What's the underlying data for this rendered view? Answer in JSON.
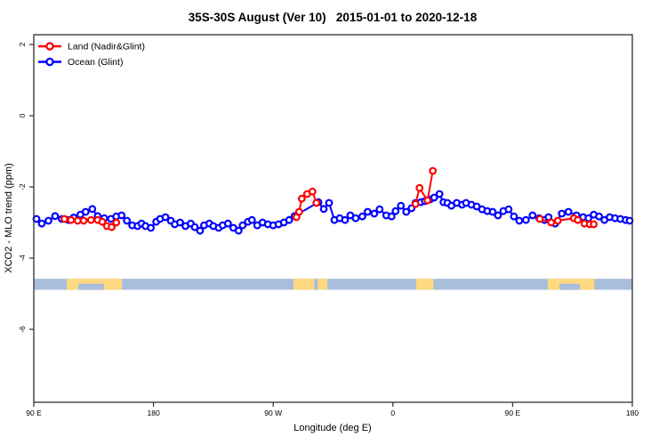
{
  "title": "35S-30S August (Ver 10)   2015-01-01 to 2020-12-18",
  "legend": {
    "items": [
      {
        "label": "Land (Nadir&Glint)",
        "color": "#ff0000"
      },
      {
        "label": "Ocean (Glint)",
        "color": "#0000ff"
      }
    ]
  },
  "colors": {
    "land_series": "#ff0000",
    "ocean_series": "#0000ff",
    "map_ocean": "#a9bedb",
    "map_land": "#fed980",
    "axis": "#2f2f2f",
    "marker_fill": "#ffffff"
  },
  "chart_data": {
    "type": "line",
    "title": "35S-30S August (Ver 10)   2015-01-01 to 2020-12-18",
    "xlabel": "Longitude (deg E)",
    "ylabel": "XCO2 - MLO trend (ppm)",
    "x_axis": {
      "note": "axis spans 450 deg starting at 90E, wrapping through 180, 90W, 0, 90E to 180",
      "range_deg": [
        0,
        450
      ],
      "ticks": [
        {
          "deg": 0,
          "label": "90 E"
        },
        {
          "deg": 90,
          "label": "180"
        },
        {
          "deg": 180,
          "label": "90 W"
        },
        {
          "deg": 270,
          "label": "0"
        },
        {
          "deg": 360,
          "label": "90 E"
        },
        {
          "deg": 450,
          "label": "180"
        }
      ]
    },
    "y_axis": {
      "range_ppm": [
        -8.05,
        2.28
      ],
      "ticks": [
        {
          "value": 2,
          "label": "2"
        },
        {
          "value": 0,
          "label": "0"
        },
        {
          "value": -2,
          "label": "-2"
        },
        {
          "value": -4,
          "label": "-4"
        },
        {
          "value": -6,
          "label": "-6"
        }
      ]
    },
    "series": [
      {
        "name": "Ocean (Glint)",
        "color": "#0000ff",
        "points": [
          [
            2,
            -2.9
          ],
          [
            6,
            -3.03
          ],
          [
            11,
            -2.95
          ],
          [
            16,
            -2.82
          ],
          [
            21,
            -2.9
          ],
          [
            26,
            -2.93
          ],
          [
            30,
            -2.86
          ],
          [
            35,
            -2.78
          ],
          [
            39,
            -2.7
          ],
          [
            44,
            -2.62
          ],
          [
            48,
            -2.82
          ],
          [
            53,
            -2.88
          ],
          [
            58,
            -2.9
          ],
          [
            62,
            -2.83
          ],
          [
            66,
            -2.8
          ],
          [
            70,
            -2.95
          ],
          [
            74,
            -3.08
          ],
          [
            78,
            -3.1
          ],
          [
            81,
            -3.03
          ],
          [
            84,
            -3.1
          ],
          [
            88,
            -3.15
          ],
          [
            92,
            -2.98
          ],
          [
            95,
            -2.9
          ],
          [
            99,
            -2.85
          ],
          [
            103,
            -2.95
          ],
          [
            106,
            -3.05
          ],
          [
            110,
            -3.0
          ],
          [
            114,
            -3.1
          ],
          [
            118,
            -3.03
          ],
          [
            121,
            -3.13
          ],
          [
            125,
            -3.23
          ],
          [
            128,
            -3.08
          ],
          [
            132,
            -3.03
          ],
          [
            135,
            -3.1
          ],
          [
            139,
            -3.15
          ],
          [
            142,
            -3.08
          ],
          [
            146,
            -3.03
          ],
          [
            150,
            -3.15
          ],
          [
            154,
            -3.23
          ],
          [
            157,
            -3.08
          ],
          [
            161,
            -2.98
          ],
          [
            164,
            -2.93
          ],
          [
            168,
            -3.08
          ],
          [
            172,
            -3.0
          ],
          [
            176,
            -3.05
          ],
          [
            180,
            -3.08
          ],
          [
            184,
            -3.05
          ],
          [
            188,
            -3.0
          ],
          [
            192,
            -2.93
          ],
          [
            196,
            -2.82
          ],
          [
            214,
            -2.43
          ],
          [
            218,
            -2.62
          ],
          [
            222,
            -2.45
          ],
          [
            226,
            -2.93
          ],
          [
            230,
            -2.88
          ],
          [
            234,
            -2.93
          ],
          [
            238,
            -2.8
          ],
          [
            242,
            -2.88
          ],
          [
            247,
            -2.83
          ],
          [
            251,
            -2.7
          ],
          [
            256,
            -2.75
          ],
          [
            260,
            -2.63
          ],
          [
            265,
            -2.8
          ],
          [
            269,
            -2.83
          ],
          [
            272,
            -2.68
          ],
          [
            276,
            -2.53
          ],
          [
            280,
            -2.7
          ],
          [
            284,
            -2.6
          ],
          [
            287,
            -2.45
          ],
          [
            291,
            -2.43
          ],
          [
            294,
            -2.4
          ],
          [
            298,
            -2.35
          ],
          [
            301,
            -2.3
          ],
          [
            305,
            -2.2
          ],
          [
            308,
            -2.43
          ],
          [
            311,
            -2.45
          ],
          [
            314,
            -2.53
          ],
          [
            318,
            -2.45
          ],
          [
            322,
            -2.5
          ],
          [
            325,
            -2.45
          ],
          [
            329,
            -2.5
          ],
          [
            333,
            -2.55
          ],
          [
            337,
            -2.63
          ],
          [
            341,
            -2.68
          ],
          [
            345,
            -2.7
          ],
          [
            349,
            -2.8
          ],
          [
            353,
            -2.68
          ],
          [
            357,
            -2.63
          ],
          [
            361,
            -2.83
          ],
          [
            365,
            -2.95
          ],
          [
            370,
            -2.93
          ],
          [
            375,
            -2.8
          ],
          [
            380,
            -2.88
          ],
          [
            384,
            -2.93
          ],
          [
            387,
            -2.85
          ],
          [
            392,
            -3.03
          ],
          [
            397,
            -2.75
          ],
          [
            402,
            -2.7
          ],
          [
            408,
            -2.8
          ],
          [
            413,
            -2.85
          ],
          [
            417,
            -2.88
          ],
          [
            421,
            -2.78
          ],
          [
            425,
            -2.83
          ],
          [
            429,
            -2.93
          ],
          [
            433,
            -2.85
          ],
          [
            437,
            -2.88
          ],
          [
            441,
            -2.9
          ],
          [
            445,
            -2.93
          ],
          [
            448,
            -2.95
          ]
        ]
      },
      {
        "name": "Land (Nadir&Glint)",
        "color": "#ff0000",
        "segments": [
          [
            [
              23,
              -2.9
            ],
            [
              28,
              -2.93
            ],
            [
              33,
              -2.95
            ],
            [
              37.5,
              -2.95
            ],
            [
              43,
              -2.93
            ],
            [
              48,
              -2.93
            ],
            [
              51.5,
              -2.98
            ],
            [
              55,
              -3.1
            ],
            [
              58.5,
              -3.13
            ],
            [
              62,
              -3.0
            ]
          ],
          [
            [
              197.5,
              -2.85
            ],
            [
              199.5,
              -2.7
            ],
            [
              201.5,
              -2.33
            ],
            [
              205.5,
              -2.2
            ],
            [
              209.5,
              -2.13
            ],
            [
              212.5,
              -2.45
            ]
          ],
          [
            [
              287,
              -2.48
            ],
            [
              290,
              -2.03
            ],
            [
              296,
              -2.38
            ],
            [
              300,
              -1.55
            ]
          ],
          [
            [
              380.5,
              -2.9
            ],
            [
              389,
              -3.0
            ],
            [
              394,
              -2.95
            ],
            [
              406,
              -2.88
            ],
            [
              409,
              -2.93
            ],
            [
              414,
              -3.03
            ],
            [
              418,
              -3.05
            ],
            [
              421,
              -3.05
            ]
          ]
        ]
      }
    ],
    "map_band": {
      "description": "land/ocean strip for 35S-30S latitude band vs longitude",
      "top_ppm": -4.58,
      "bottom_ppm": -4.89,
      "ocean_color": "#a9bedb",
      "land_color": "#fed980",
      "land_segments": [
        {
          "name": "australia-west-copy",
          "from": 24.8,
          "to": 66.3
        },
        {
          "name": "south-america",
          "from": 195.3,
          "to": 220.7
        },
        {
          "name": "southern-africa",
          "from": 287.5,
          "to": 300.5
        },
        {
          "name": "australia-east-copy",
          "from": 386.5,
          "to": 421.5
        }
      ],
      "ocean_notches": [
        {
          "name": "great-australian-bight-west",
          "from": 33.4,
          "to": 52.8,
          "part": "bottom"
        },
        {
          "name": "rio-de-la-plata",
          "from": 210.8,
          "to": 213.5,
          "part": "full"
        },
        {
          "name": "great-australian-bight-east",
          "from": 395.2,
          "to": 410.6,
          "part": "bottom"
        }
      ]
    }
  }
}
